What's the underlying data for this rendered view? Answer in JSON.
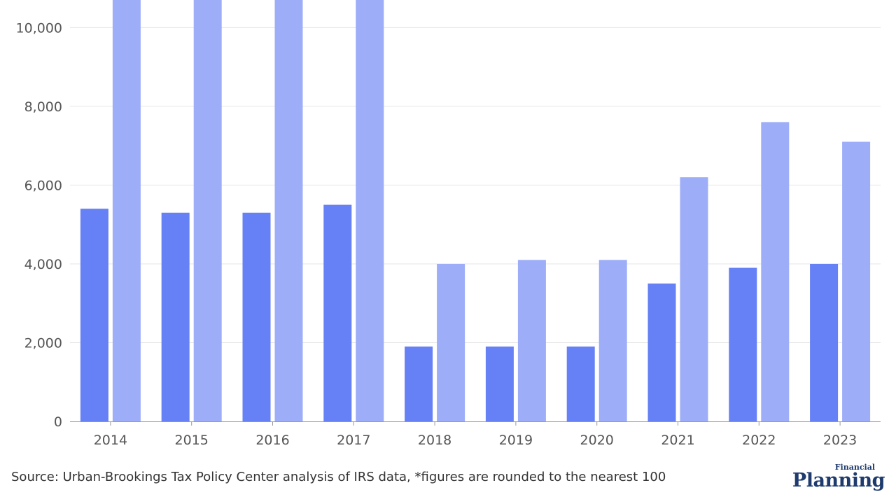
{
  "chart_data": {
    "type": "bar",
    "categories": [
      "2014",
      "2015",
      "2016",
      "2017",
      "2018",
      "2019",
      "2020",
      "2021",
      "2022",
      "2023"
    ],
    "series": [
      {
        "color": "#6680f5",
        "values": [
          5400,
          5300,
          5300,
          5500,
          1900,
          1900,
          1900,
          3500,
          3900,
          4000
        ]
      },
      {
        "color": "#9dadf7",
        "values": [
          10700,
          10700,
          10700,
          10700,
          4000,
          4100,
          4100,
          6200,
          7600,
          7100
        ]
      }
    ],
    "ylim": [
      0,
      10700
    ],
    "yticks": [
      0,
      2000,
      4000,
      6000,
      8000,
      10000
    ],
    "ytick_labels": [
      "0",
      "2,000",
      "4,000",
      "6,000",
      "8,000",
      "10,000"
    ],
    "grid": true
  },
  "footer": {
    "source": "Source: Urban-Brookings Tax Policy Center analysis of IRS data, *figures are rounded to the nearest 100"
  },
  "brand": {
    "small": "Financial",
    "main": "Planning"
  }
}
